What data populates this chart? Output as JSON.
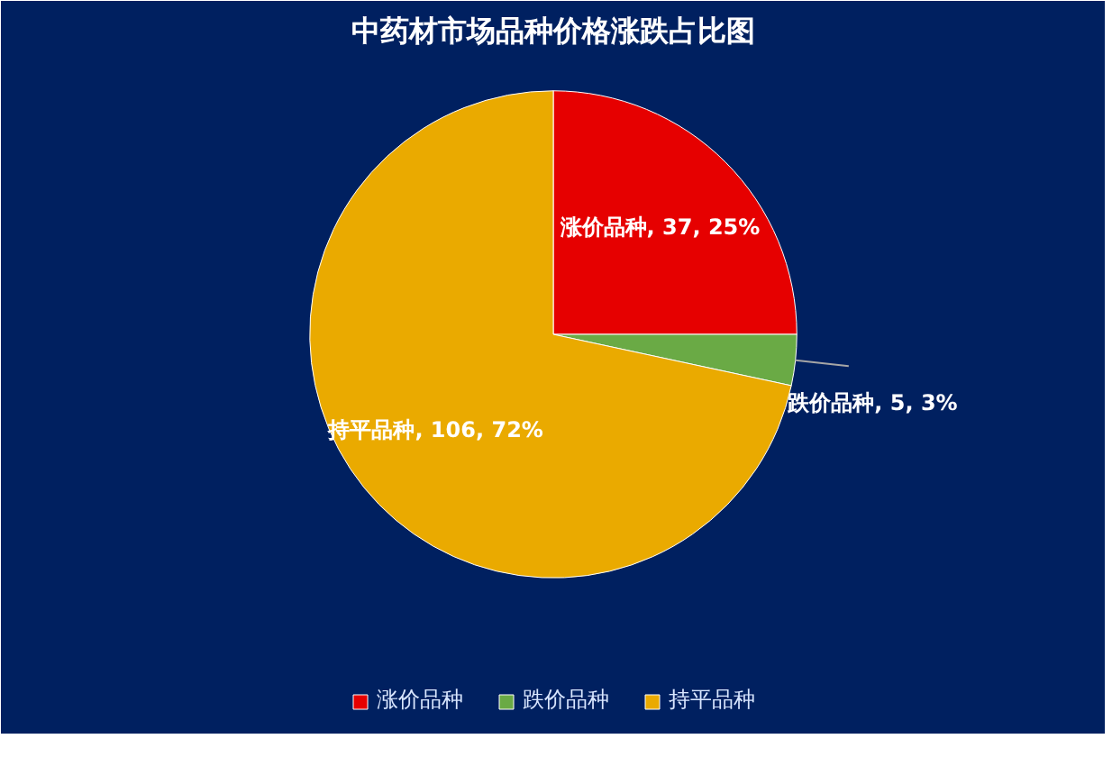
{
  "chart_data": {
    "type": "pie",
    "title": "中药材市场品种价格涨跌占比图",
    "categories": [
      "涨价品种",
      "跌价品种",
      "持平品种"
    ],
    "values": [
      37,
      5,
      106
    ],
    "colors": [
      "#e60000",
      "#6aaa45",
      "#eaaa00"
    ],
    "value_labels": [
      "涨价品种, 37, 25%",
      "跌价品种, 5, 3%",
      "持平品种, 106, 72%"
    ],
    "legend": "bottom"
  }
}
